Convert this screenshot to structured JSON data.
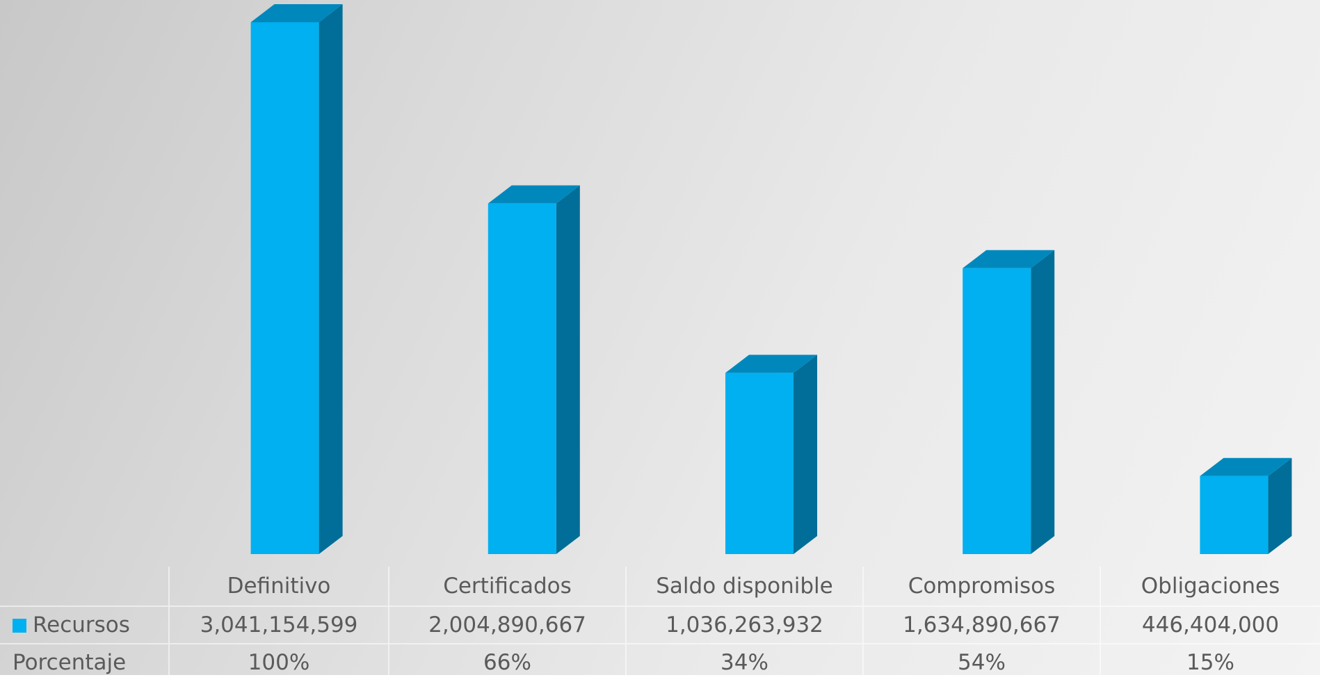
{
  "chart_data": {
    "type": "bar",
    "style": "3d-column-with-data-table",
    "categories": [
      "Definitivo",
      "Certificados",
      "Saldo disponible",
      "Compromisos",
      "Obligaciones"
    ],
    "series": [
      {
        "name": "Recursos",
        "values": [
          3041154599,
          2004890667,
          1036263932,
          1634890667,
          446404000
        ],
        "labels": [
          "3,041,154,599",
          "2,004,890,667",
          "1,036,263,932",
          "1,634,890,667",
          "446,404,000"
        ]
      }
    ],
    "table_rows": [
      {
        "label": "Recursos",
        "cells": [
          "3,041,154,599",
          "2,004,890,667",
          "1,036,263,932",
          "1,634,890,667",
          "446,404,000"
        ]
      },
      {
        "label": "Porcentaje",
        "cells": [
          "100%",
          "66%",
          "34%",
          "54%",
          "15%"
        ]
      }
    ],
    "title": "",
    "xlabel": "",
    "ylabel": "",
    "ylim": [
      0,
      3041154599
    ],
    "grid": false,
    "legend": "data-table",
    "colors": {
      "bar_front": "#00b0f0",
      "bar_side": "#006e98",
      "bar_top": "#0088bd",
      "text": "#5a5a5a"
    }
  }
}
